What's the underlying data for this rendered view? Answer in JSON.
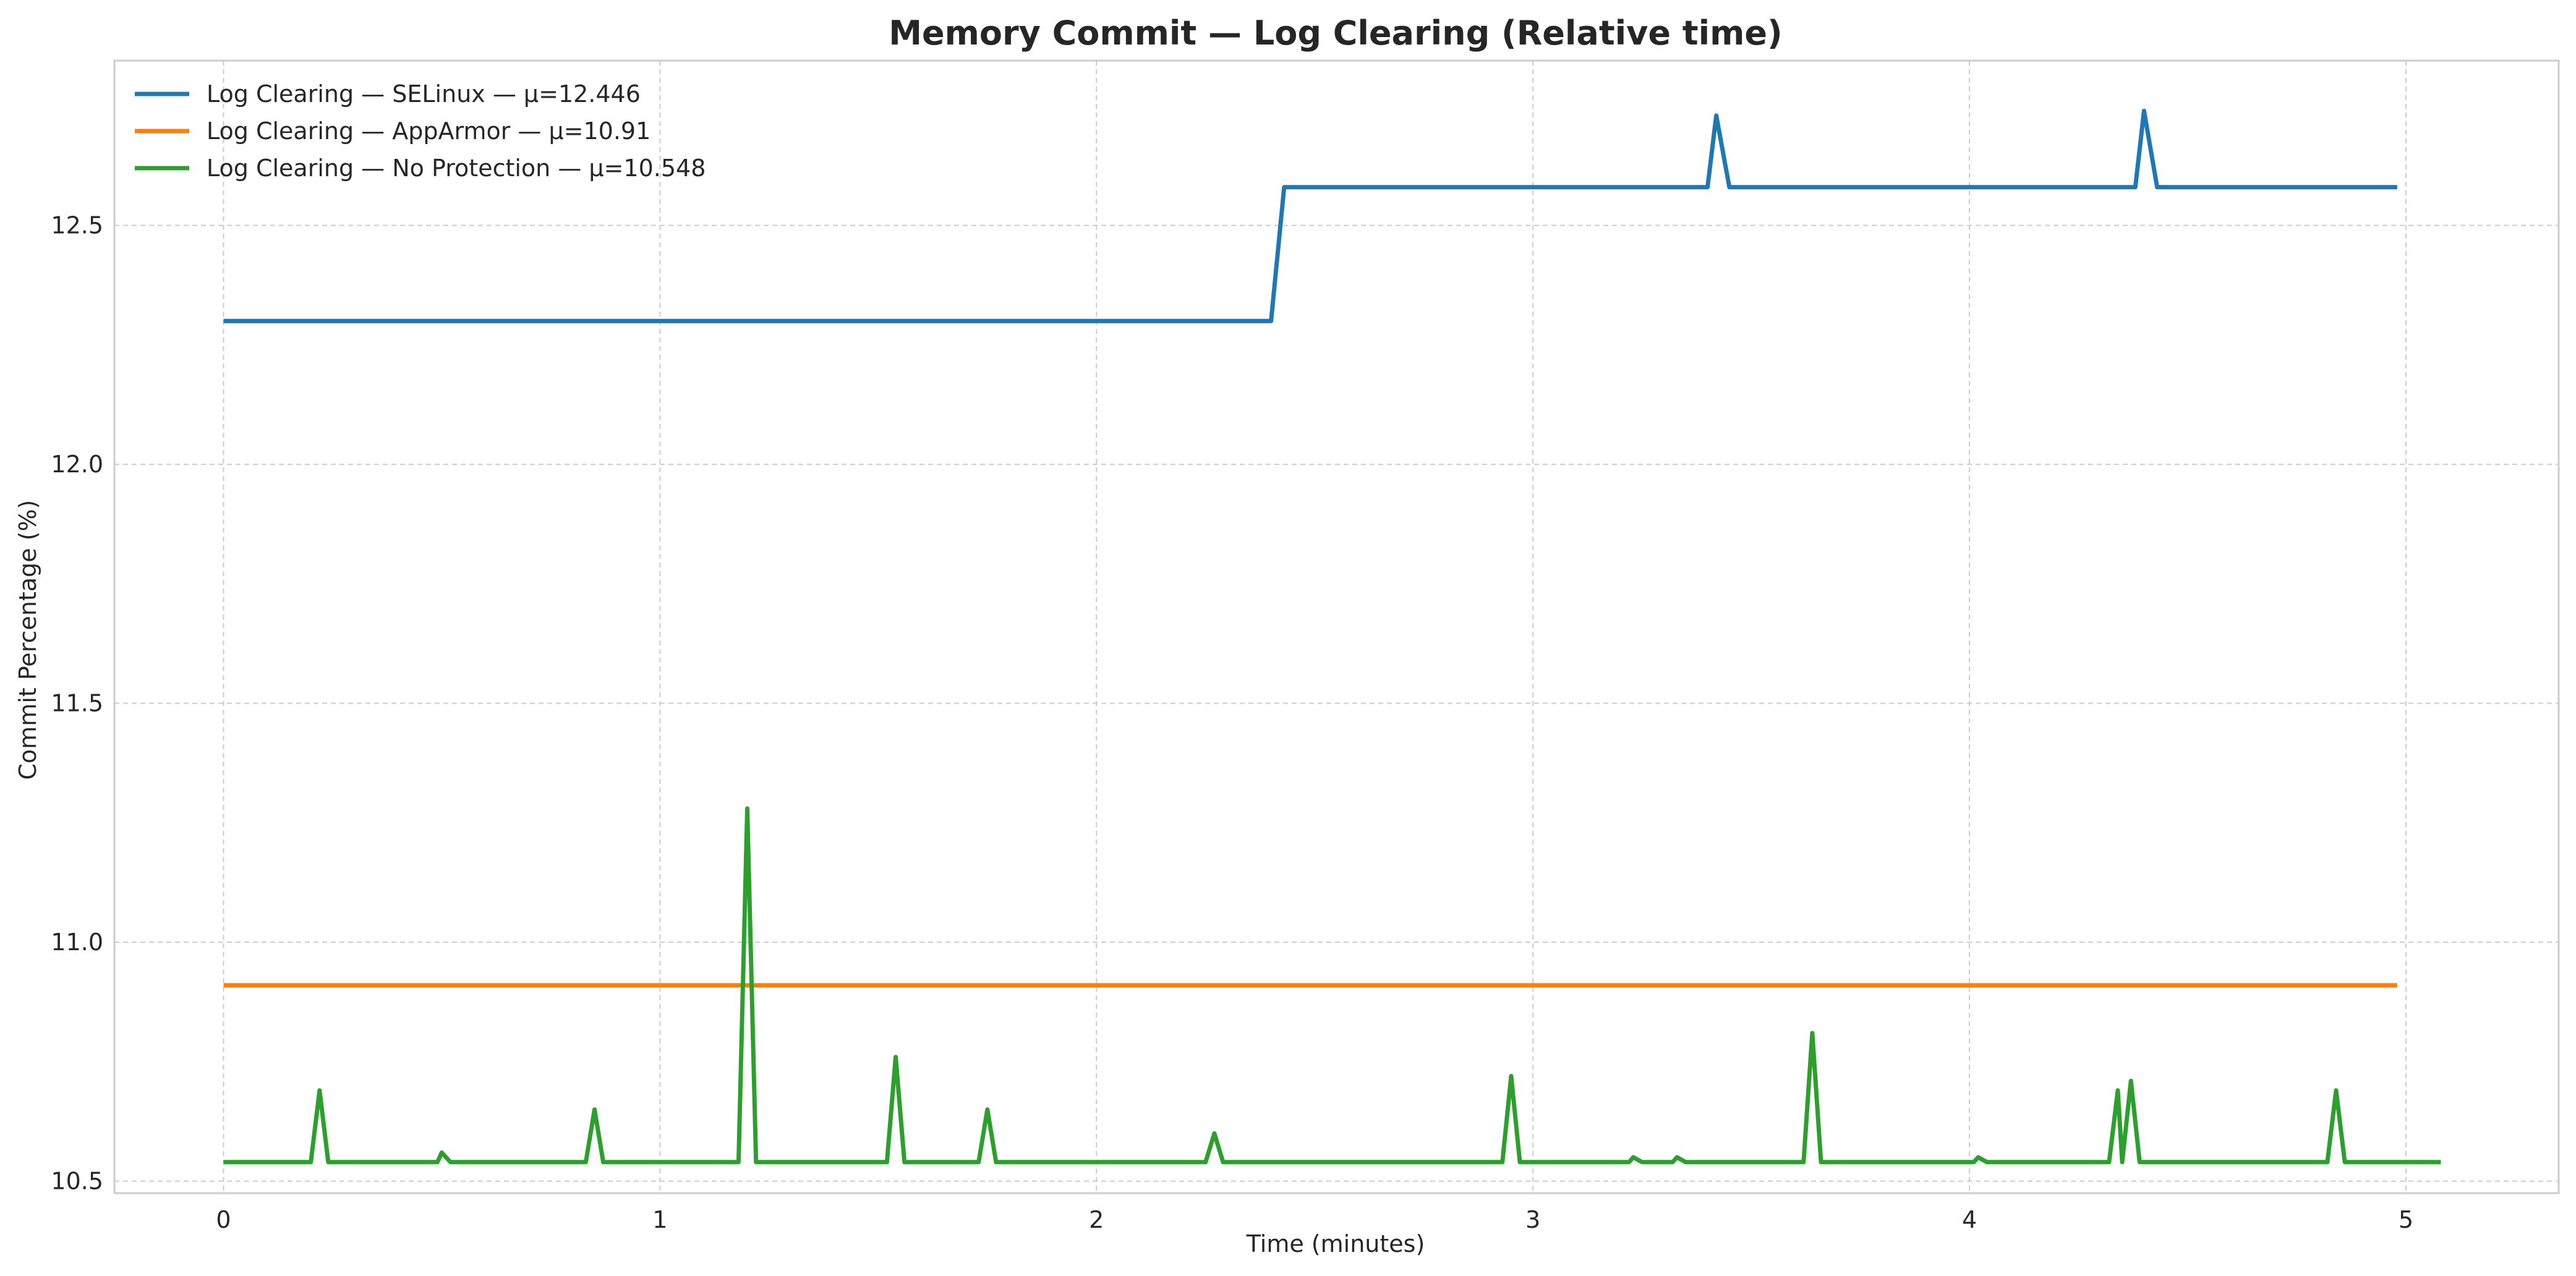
{
  "chart_data": {
    "type": "line",
    "title": "Memory Commit — Log Clearing (Relative time)",
    "xlabel": "Time (minutes)",
    "ylabel": "Commit Percentage (%)",
    "xlim": [
      -0.25,
      5.35
    ],
    "ylim": [
      10.475,
      12.845
    ],
    "xticks": [
      0,
      1,
      2,
      3,
      4,
      5
    ],
    "xtick_labels": [
      "0",
      "1",
      "2",
      "3",
      "4",
      "5"
    ],
    "yticks": [
      10.5,
      11.0,
      11.5,
      12.0,
      12.5
    ],
    "ytick_labels": [
      "10.5",
      "11.0",
      "11.5",
      "12.0",
      "12.5"
    ],
    "grid": true,
    "legend_position": "top-left",
    "series": [
      {
        "name": "Log Clearing — SELinux — μ=12.446",
        "color": "#1f77b4",
        "x": [
          0,
          2.4,
          2.43,
          3.4,
          3.42,
          3.45,
          4.38,
          4.4,
          4.43,
          4.98
        ],
        "y": [
          12.3,
          12.3,
          12.58,
          12.58,
          12.73,
          12.58,
          12.58,
          12.74,
          12.58,
          12.58
        ]
      },
      {
        "name": "Log Clearing — AppArmor — μ=10.91",
        "color": "#ff7f0e",
        "x": [
          0,
          4.98
        ],
        "y": [
          10.91,
          10.91
        ]
      },
      {
        "name": "Log Clearing — No Protection — μ=10.548",
        "color": "#2ca02c",
        "x": [
          0,
          0.2,
          0.22,
          0.24,
          0.49,
          0.5,
          0.52,
          0.83,
          0.85,
          0.87,
          1.18,
          1.2,
          1.22,
          1.52,
          1.54,
          1.56,
          1.73,
          1.75,
          1.77,
          2.25,
          2.27,
          2.29,
          2.93,
          2.95,
          2.97,
          3.22,
          3.23,
          3.25,
          3.32,
          3.33,
          3.35,
          3.62,
          3.64,
          3.66,
          4.01,
          4.02,
          4.04,
          4.32,
          4.34,
          4.35,
          4.37,
          4.39,
          4.82,
          4.84,
          4.86,
          5.08
        ],
        "y": [
          10.54,
          10.54,
          10.69,
          10.54,
          10.54,
          10.56,
          10.54,
          10.54,
          10.65,
          10.54,
          10.54,
          11.28,
          10.54,
          10.54,
          10.76,
          10.54,
          10.54,
          10.65,
          10.54,
          10.54,
          10.6,
          10.54,
          10.54,
          10.72,
          10.54,
          10.54,
          10.55,
          10.54,
          10.54,
          10.55,
          10.54,
          10.54,
          10.81,
          10.54,
          10.54,
          10.55,
          10.54,
          10.54,
          10.69,
          10.54,
          10.71,
          10.54,
          10.54,
          10.69,
          10.54,
          10.54
        ]
      }
    ]
  }
}
